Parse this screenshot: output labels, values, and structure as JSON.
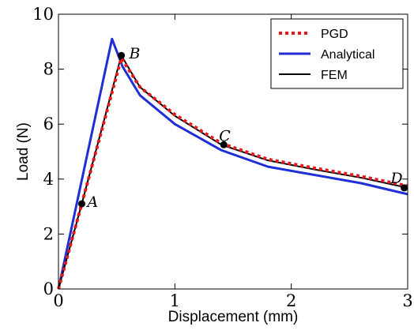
{
  "chart_data": {
    "type": "line",
    "xlabel": "Displacement (mm)",
    "ylabel": "Load (N)",
    "xlim": [
      0,
      3
    ],
    "ylim": [
      0,
      10
    ],
    "xticks": [
      "0",
      "1",
      "2",
      "3"
    ],
    "yticks": [
      "0",
      "2",
      "4",
      "6",
      "8",
      "10"
    ],
    "grid": false,
    "legend_position": "top-right",
    "series": [
      {
        "name": "PGD",
        "color": "#e41a1c",
        "style": "dotted",
        "x": [
          0,
          0.2,
          0.54,
          0.7,
          1.0,
          1.4,
          1.8,
          2.2,
          2.6,
          3.0
        ],
        "y": [
          0,
          3.1,
          8.4,
          7.35,
          6.35,
          5.3,
          4.72,
          4.4,
          4.1,
          3.75
        ]
      },
      {
        "name": "Analytical",
        "color": "#1f2ed6",
        "style": "solid",
        "x": [
          0,
          0.46,
          0.55,
          0.7,
          1.0,
          1.4,
          1.8,
          2.2,
          2.6,
          3.0
        ],
        "y": [
          0,
          9.1,
          8.1,
          7.05,
          6.0,
          5.05,
          4.45,
          4.15,
          3.85,
          3.45
        ]
      },
      {
        "name": "FEM",
        "color": "#000000",
        "style": "solid",
        "x": [
          0,
          0.2,
          0.54,
          0.7,
          1.0,
          1.4,
          1.8,
          2.2,
          2.6,
          3.0
        ],
        "y": [
          0,
          3.1,
          8.5,
          7.35,
          6.3,
          5.25,
          4.68,
          4.35,
          4.05,
          3.68
        ]
      }
    ],
    "annotations": [
      {
        "label": "A",
        "x": 0.2,
        "y": 3.1
      },
      {
        "label": "B",
        "x": 0.54,
        "y": 8.5
      },
      {
        "label": "C",
        "x": 1.42,
        "y": 5.25
      },
      {
        "label": "D",
        "x": 2.97,
        "y": 3.68
      }
    ]
  }
}
